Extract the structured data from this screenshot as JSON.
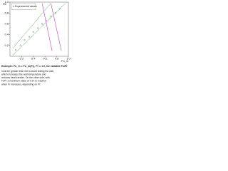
{
  "chart_data": {
    "type": "line",
    "x_label": "Fo_m",
    "y_label": "Re",
    "xlim": [
      0,
      1
    ],
    "ylim": [
      0,
      1
    ],
    "xticks": [
      0.2,
      0.4,
      0.6,
      0.8,
      {
        "value": 1,
        "label": "1.0"
      }
    ],
    "yticks": [
      0.2,
      0.4,
      0.6,
      0.8,
      {
        "value": 1,
        "label": "1.0"
      }
    ],
    "grid": false,
    "series": [
      {
        "name": "Experimental values",
        "color": "#2e8b3a",
        "mode": "markers",
        "x": [
          0.1,
          0.18,
          0.25,
          0.33,
          0.4,
          0.48,
          0.55,
          0.62,
          0.7,
          0.78,
          0.85
        ],
        "values": [
          0.12,
          0.2,
          0.3,
          0.36,
          0.45,
          0.52,
          0.6,
          0.66,
          0.74,
          0.8,
          0.88
        ]
      },
      {
        "color": "#2e8b3a",
        "mode": "dotted",
        "x": [
          0.05,
          0.95
        ],
        "values": [
          0.02,
          0.98
        ]
      },
      {
        "color": "#2e8b3a",
        "mode": "dotted",
        "x": [
          0.05,
          0.7
        ],
        "values": [
          0.15,
          0.98
        ]
      },
      {
        "color": "#c03cc0",
        "mode": "solid",
        "x": [
          0.55,
          0.72
        ],
        "values": [
          0.98,
          0.1
        ]
      },
      {
        "color": "#c03cc0",
        "mode": "solid",
        "x": [
          0.7,
          0.88
        ],
        "values": [
          0.98,
          0.1
        ]
      }
    ],
    "caption_title": "Example: Fo_m = Fo_m(Fr), Pr = 1.0, for variable Fo/Pr",
    "caption": [
      "must be greater than 0.8 to avoid boiling the wall,",
      "which increases the wall temperature and",
      "reduces heat transfer. On the other side, with",
      "Fr/Pr a maximum value of 0.67 is reached",
      "when Fr increases, depending on Pr."
    ]
  }
}
